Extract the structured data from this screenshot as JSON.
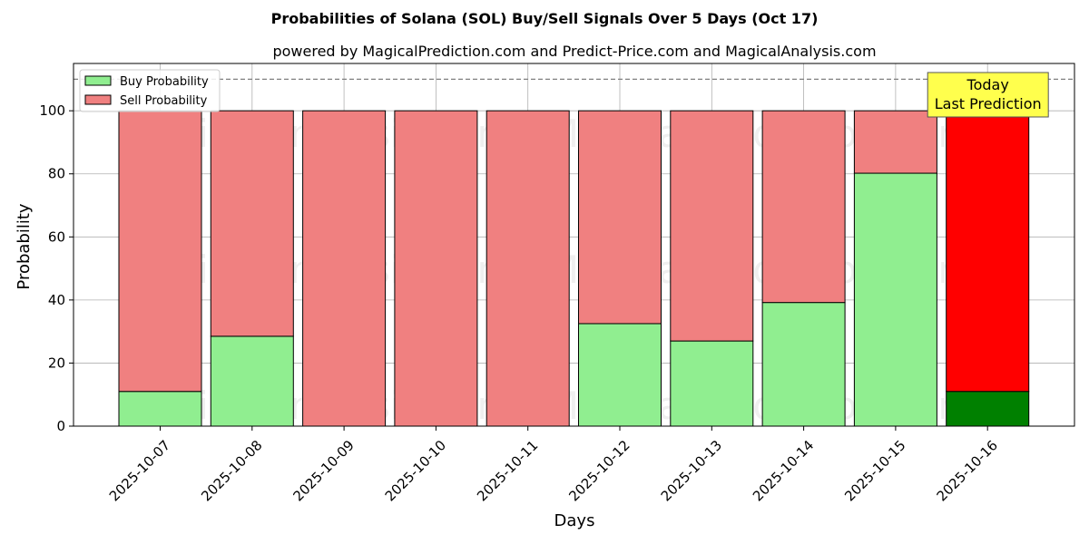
{
  "chart_data": {
    "type": "bar",
    "stacked": true,
    "title": "Probabilities of Solana (SOL) Buy/Sell Signals Over 5 Days (Oct 17)",
    "subtitle": "powered by MagicalPrediction.com and Predict-Price.com and MagicalAnalysis.com",
    "xlabel": "Days",
    "ylabel": "Probability",
    "categories": [
      "2025-10-07",
      "2025-10-08",
      "2025-10-09",
      "2025-10-10",
      "2025-10-11",
      "2025-10-12",
      "2025-10-13",
      "2025-10-14",
      "2025-10-15",
      "2025-10-16"
    ],
    "series": [
      {
        "name": "Buy Probability",
        "values": [
          11,
          28.5,
          0,
          0,
          0,
          32.5,
          27,
          39.2,
          80.2,
          11
        ],
        "color": "#90ee90",
        "highlight_color": "#008000"
      },
      {
        "name": "Sell Probability",
        "values": [
          89,
          71.5,
          100,
          100,
          100,
          67.5,
          73,
          60.8,
          19.8,
          89
        ],
        "color": "#f08080",
        "highlight_color": "#ff0000"
      }
    ],
    "highlight_index": 9,
    "ylim": [
      0,
      115
    ],
    "yticks": [
      0,
      20,
      40,
      60,
      80,
      100
    ],
    "reference_line": 110,
    "grid": true,
    "legend_position": "top-left",
    "annotation": {
      "lines": [
        "Today",
        "Last Prediction"
      ],
      "color": "#ffff4d"
    },
    "watermarks": [
      "MagicalAnalysis.com",
      "MagicalPrediction.com"
    ]
  }
}
